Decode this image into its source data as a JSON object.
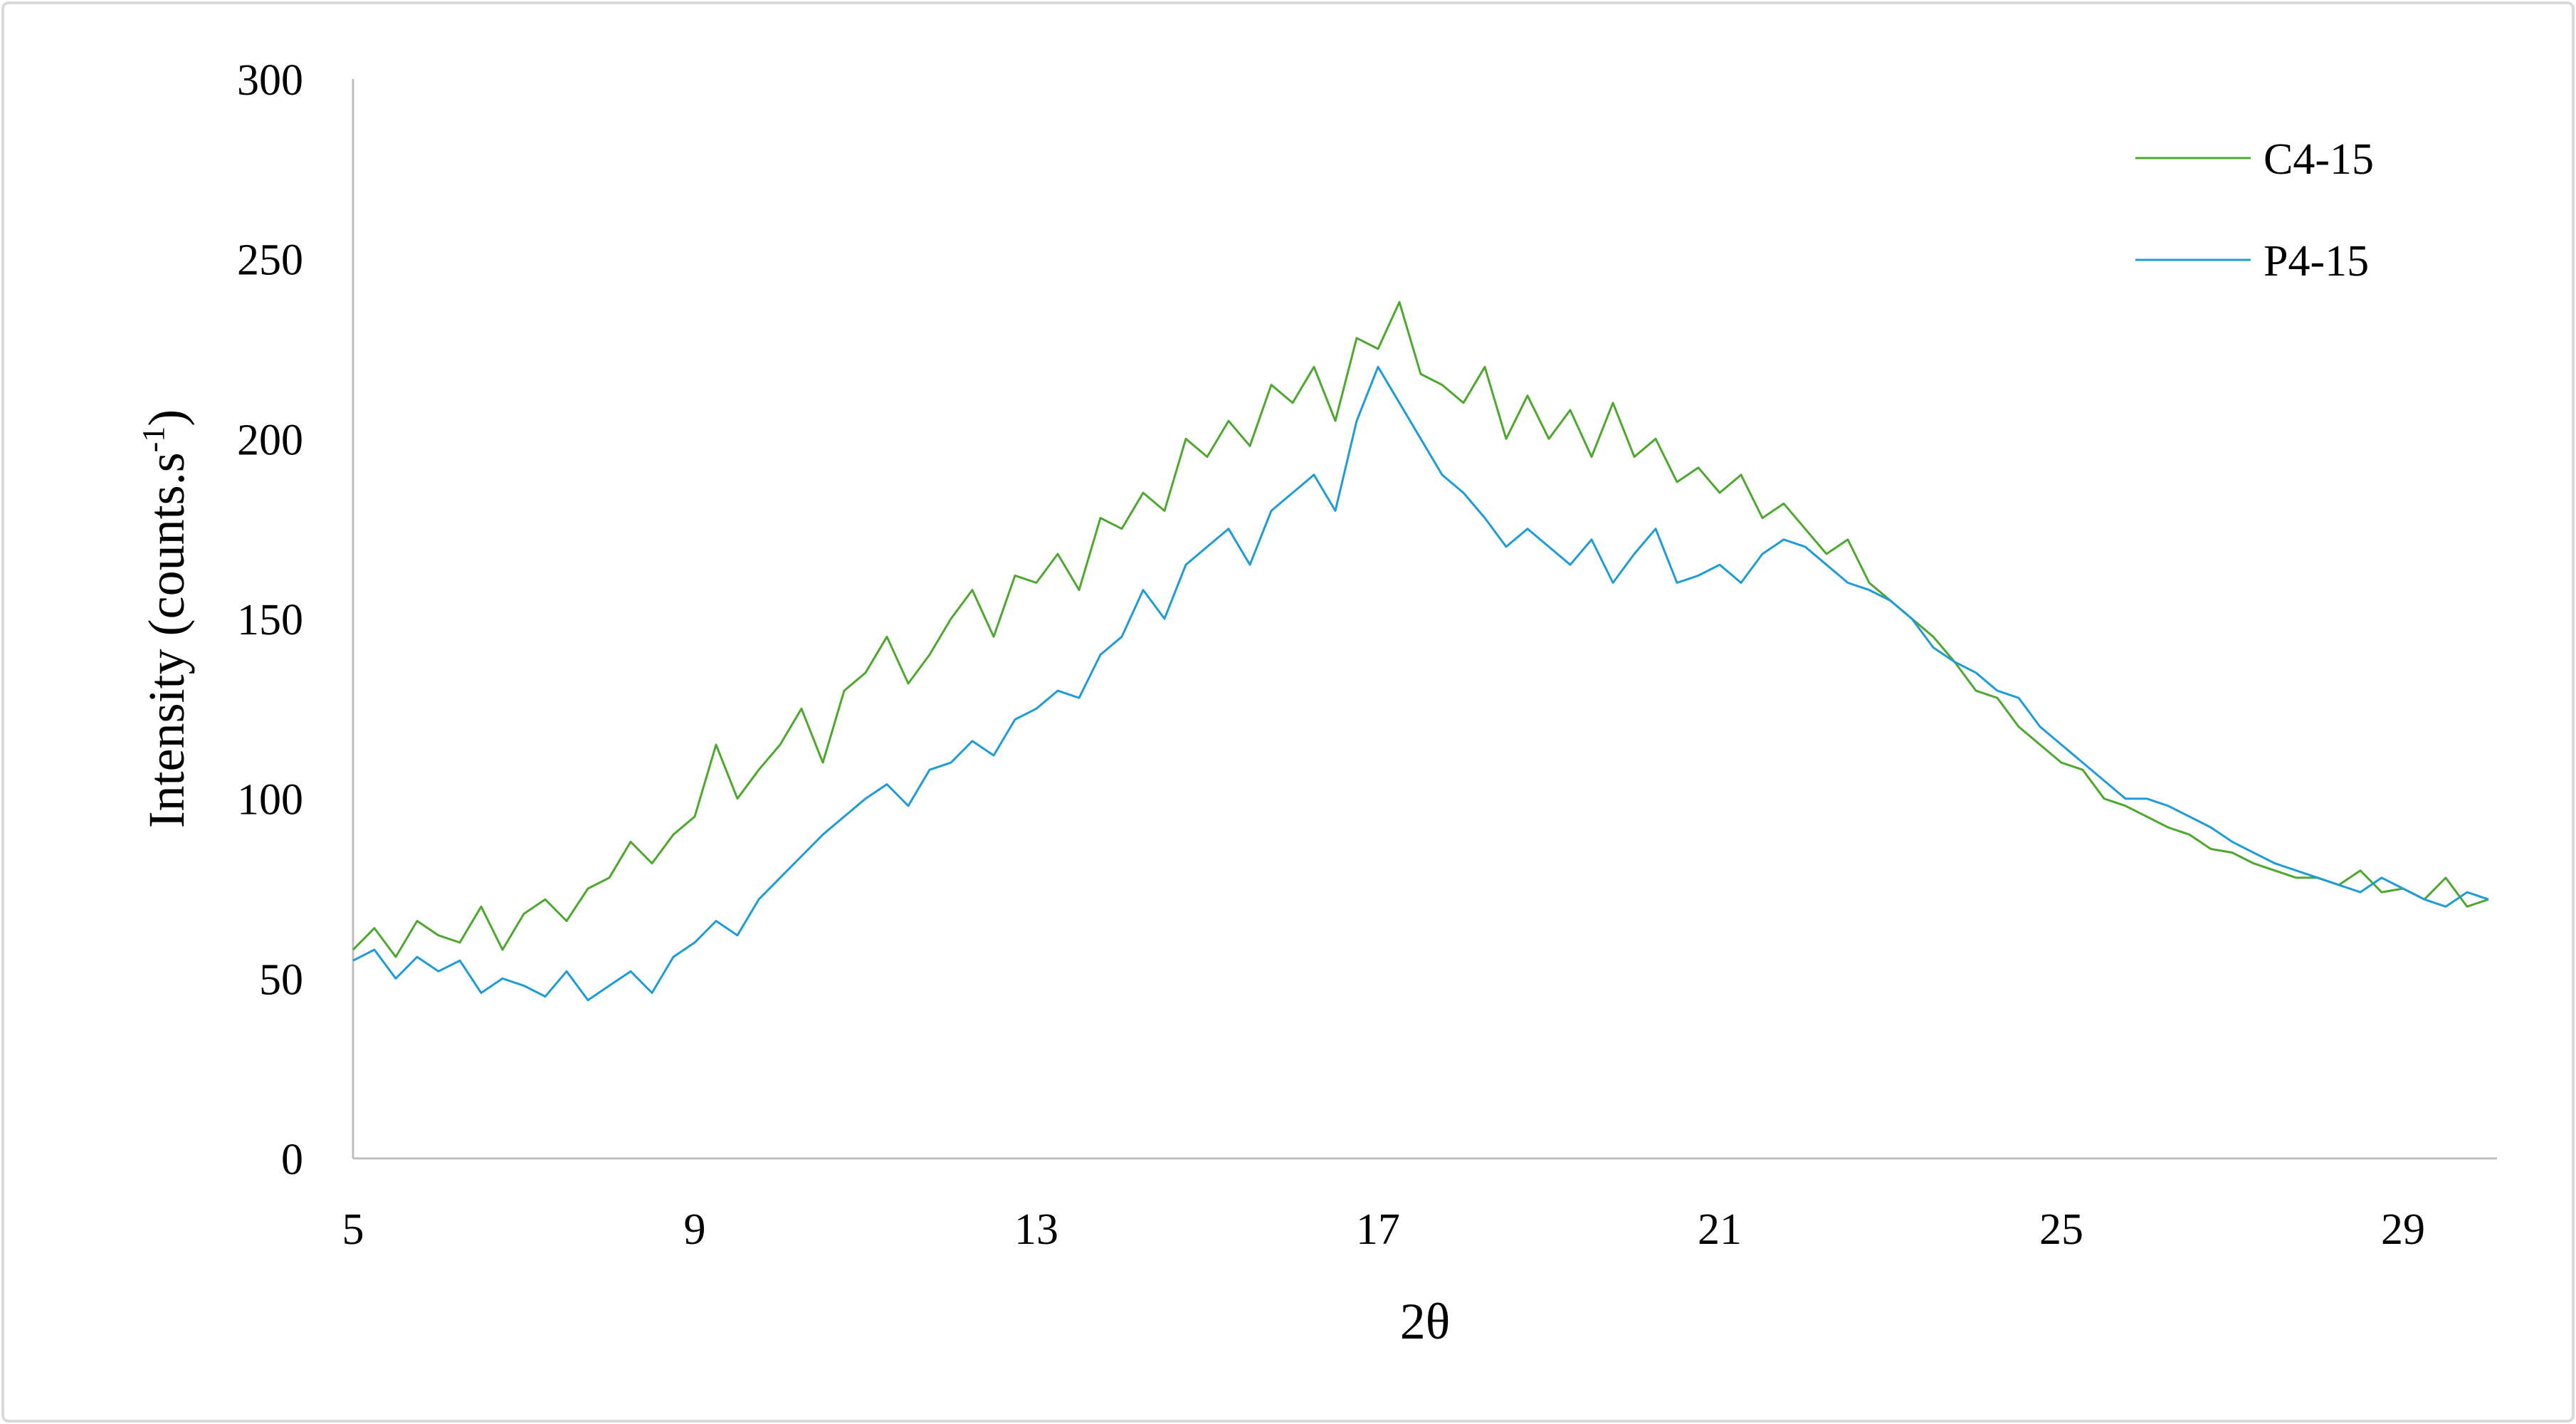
{
  "chart_data": {
    "type": "line",
    "x_label": "2θ",
    "y_label_parts": [
      "Intensity (counts.s",
      "-1",
      ")"
    ],
    "xlim": [
      5,
      30.1
    ],
    "xticks": [
      5,
      9,
      13,
      17,
      21,
      25,
      29
    ],
    "ylim": [
      0,
      300
    ],
    "yticks": [
      0,
      50,
      100,
      150,
      200,
      250,
      300
    ],
    "grid": false,
    "legend": "top-right",
    "x": [
      5,
      5.25,
      5.5,
      5.75,
      6,
      6.25,
      6.5,
      6.75,
      7,
      7.25,
      7.5,
      7.75,
      8,
      8.25,
      8.5,
      8.75,
      9,
      9.25,
      9.5,
      9.75,
      10,
      10.25,
      10.5,
      10.75,
      11,
      11.25,
      11.5,
      11.75,
      12,
      12.25,
      12.5,
      12.75,
      13,
      13.25,
      13.5,
      13.75,
      14,
      14.25,
      14.5,
      14.75,
      15,
      15.25,
      15.5,
      15.75,
      16,
      16.25,
      16.5,
      16.75,
      17,
      17.25,
      17.5,
      17.75,
      18,
      18.25,
      18.5,
      18.75,
      19,
      19.25,
      19.5,
      19.75,
      20,
      20.25,
      20.5,
      20.75,
      21,
      21.25,
      21.5,
      21.75,
      22,
      22.25,
      22.5,
      22.75,
      23,
      23.25,
      23.5,
      23.75,
      24,
      24.25,
      24.5,
      24.75,
      25,
      25.25,
      25.5,
      25.75,
      26,
      26.25,
      26.5,
      26.75,
      27,
      27.25,
      27.5,
      27.75,
      28,
      28.25,
      28.5,
      28.75,
      29,
      29.25,
      29.5,
      29.75,
      30
    ],
    "series": [
      {
        "name": "C4-15",
        "color": "#4ea72e",
        "values": [
          58,
          64,
          56,
          66,
          62,
          60,
          70,
          58,
          68,
          72,
          66,
          75,
          78,
          88,
          82,
          90,
          95,
          115,
          100,
          108,
          115,
          125,
          110,
          130,
          135,
          145,
          132,
          140,
          150,
          158,
          145,
          162,
          160,
          168,
          158,
          178,
          175,
          185,
          180,
          200,
          195,
          205,
          198,
          215,
          210,
          220,
          205,
          228,
          225,
          238,
          218,
          215,
          210,
          220,
          200,
          212,
          200,
          208,
          195,
          210,
          195,
          200,
          188,
          192,
          185,
          190,
          178,
          182,
          175,
          168,
          172,
          160,
          155,
          150,
          145,
          138,
          130,
          128,
          120,
          115,
          110,
          108,
          100,
          98,
          95,
          92,
          90,
          86,
          85,
          82,
          80,
          78,
          78,
          76,
          80,
          74,
          75,
          72,
          78,
          70,
          72
        ]
      },
      {
        "name": "P4-15",
        "color": "#1f9bd7",
        "values": [
          55,
          58,
          50,
          56,
          52,
          55,
          46,
          50,
          48,
          45,
          52,
          44,
          48,
          52,
          46,
          56,
          60,
          66,
          62,
          72,
          78,
          84,
          90,
          95,
          100,
          104,
          98,
          108,
          110,
          116,
          112,
          122,
          125,
          130,
          128,
          140,
          145,
          158,
          150,
          165,
          170,
          175,
          165,
          180,
          185,
          190,
          180,
          205,
          220,
          210,
          200,
          190,
          185,
          178,
          170,
          175,
          170,
          165,
          172,
          160,
          168,
          175,
          160,
          162,
          165,
          160,
          168,
          172,
          170,
          165,
          160,
          158,
          155,
          150,
          142,
          138,
          135,
          130,
          128,
          120,
          115,
          110,
          105,
          100,
          100,
          98,
          95,
          92,
          88,
          85,
          82,
          80,
          78,
          76,
          74,
          78,
          75,
          72,
          70,
          74,
          72
        ]
      }
    ]
  }
}
